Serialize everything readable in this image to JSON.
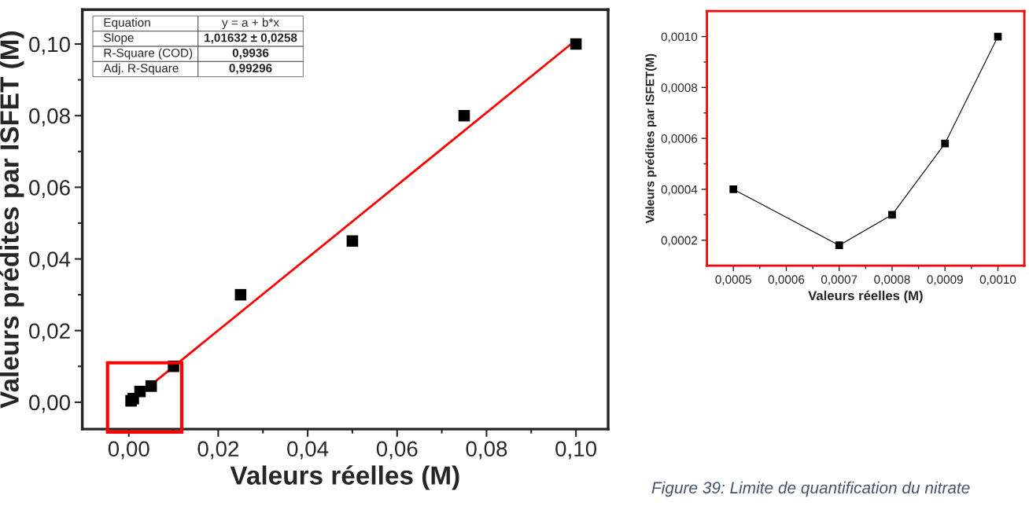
{
  "chart_data": [
    {
      "type": "scatter",
      "xlabel": "Valeurs réelles (M)",
      "ylabel": "Valeurs prédites par ISFET (M)",
      "series": [
        {
          "type": "scatter",
          "color": "#000000",
          "marker": "square",
          "x": [
            0.0005,
            0.0007,
            0.0008,
            0.0009,
            0.001,
            0.0025,
            0.005,
            0.01,
            0.025,
            0.05,
            0.075,
            0.1
          ],
          "values": [
            0.0004,
            null,
            null,
            null,
            0.001,
            0.003,
            0.0045,
            0.01,
            0.03,
            0.045,
            0.08,
            0.1
          ]
        },
        {
          "type": "line",
          "color": "#ff0000",
          "marker": "none",
          "line_style": "solid",
          "x": [
            0.0005,
            0.1
          ],
          "values": [
            0.0003,
            0.1011
          ]
        }
      ],
      "xlim": [
        -0.0104,
        0.1072
      ],
      "ylim": [
        -0.0075,
        0.1096
      ],
      "xticks": [
        {
          "value": 0,
          "label": "0,00"
        },
        {
          "value": 0.01,
          "label": null
        },
        {
          "value": 0.02,
          "label": "0,02"
        },
        {
          "value": 0.03,
          "label": null
        },
        {
          "value": 0.04,
          "label": "0,04"
        },
        {
          "value": 0.05,
          "label": null
        },
        {
          "value": 0.06,
          "label": "0,06"
        },
        {
          "value": 0.07,
          "label": null
        },
        {
          "value": 0.08,
          "label": "0,08"
        },
        {
          "value": 0.09,
          "label": null
        },
        {
          "value": 0.1,
          "label": "0,10"
        }
      ],
      "yticks": [
        {
          "value": 0,
          "label": "0,00"
        },
        {
          "value": 0.01,
          "label": null
        },
        {
          "value": 0.02,
          "label": "0,02"
        },
        {
          "value": 0.03,
          "label": null
        },
        {
          "value": 0.04,
          "label": "0,04"
        },
        {
          "value": 0.05,
          "label": null
        },
        {
          "value": 0.06,
          "label": "0,06"
        },
        {
          "value": 0.07,
          "label": null
        },
        {
          "value": 0.08,
          "label": "0,08"
        },
        {
          "value": 0.09,
          "label": null
        },
        {
          "value": 0.1,
          "label": "0,10"
        }
      ],
      "annotations": [
        "Equation",
        "y = a + b*x",
        "Slope",
        "1,01632 ± 0,0258",
        "R-Square (COD)",
        "0,9936",
        "Adj. R-Square",
        "0,99296"
      ],
      "grid": false,
      "legend": false
    },
    {
      "type": "line",
      "xlabel": "Valeurs réelles (M)",
      "ylabel": "Valeurs prédites par ISFET(M)",
      "series": [
        {
          "color": "#000000",
          "marker": "square",
          "line_style": "solid",
          "x": [
            0.0005,
            0.0007,
            0.0008,
            0.0009,
            0.001
          ],
          "values": [
            0.0004,
            0.00018,
            0.0003,
            0.00058,
            0.001
          ]
        }
      ],
      "xlim": [
        0.00045,
        0.00105
      ],
      "ylim": [
        0.0001,
        0.0011
      ],
      "xticks": [
        {
          "value": 0.0005,
          "label": "0,0005"
        },
        {
          "value": 0.00055,
          "label": null
        },
        {
          "value": 0.0006,
          "label": "0,0006"
        },
        {
          "value": 0.00065,
          "label": null
        },
        {
          "value": 0.0007,
          "label": "0,0007"
        },
        {
          "value": 0.00075,
          "label": null
        },
        {
          "value": 0.0008,
          "label": "0,0008"
        },
        {
          "value": 0.00085,
          "label": null
        },
        {
          "value": 0.0009,
          "label": "0,0009"
        },
        {
          "value": 0.00095,
          "label": null
        },
        {
          "value": 0.001,
          "label": "0,0010"
        }
      ],
      "yticks": [
        {
          "value": 0.0002,
          "label": "0,0002"
        },
        {
          "value": 0.0003,
          "label": null
        },
        {
          "value": 0.0004,
          "label": "0,0004"
        },
        {
          "value": 0.0005,
          "label": null
        },
        {
          "value": 0.0006,
          "label": "0,0006"
        },
        {
          "value": 0.0007,
          "label": null
        },
        {
          "value": 0.0008,
          "label": "0,0008"
        },
        {
          "value": 0.0009,
          "label": null
        },
        {
          "value": 0.001,
          "label": "0,0010"
        }
      ],
      "annotations": [
        "Figure 39: Limite de quantification du nitrate"
      ],
      "grid": false,
      "legend": false
    }
  ]
}
